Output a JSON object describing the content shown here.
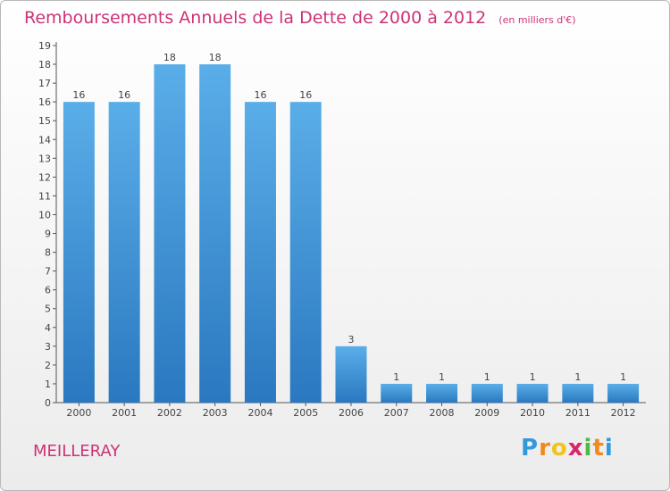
{
  "chart_data": {
    "type": "bar",
    "title": "Remboursements Annuels de la Dette de 2000 à 2012",
    "subtitle": "(en milliers d'€)",
    "categories": [
      "2000",
      "2001",
      "2002",
      "2003",
      "2004",
      "2005",
      "2006",
      "2007",
      "2008",
      "2009",
      "2010",
      "2011",
      "2012"
    ],
    "values": [
      16,
      16,
      18,
      18,
      16,
      16,
      3,
      1,
      1,
      1,
      1,
      1,
      1
    ],
    "ylim": [
      0,
      19
    ],
    "yticks": [
      0,
      1,
      2,
      3,
      4,
      5,
      6,
      7,
      8,
      9,
      10,
      11,
      12,
      13,
      14,
      15,
      16,
      17,
      18,
      19
    ],
    "grid": false,
    "bar_color": "#3a8fd8"
  },
  "footer": {
    "place": "MEILLERAY",
    "logo_letters": [
      "P",
      "r",
      "o",
      "x",
      "i",
      "t",
      "i"
    ],
    "logo_colors": [
      "#3399dd",
      "#f08a1c",
      "#f0c419",
      "#d9256b",
      "#4fb848",
      "#f08a1c",
      "#3399dd"
    ]
  }
}
